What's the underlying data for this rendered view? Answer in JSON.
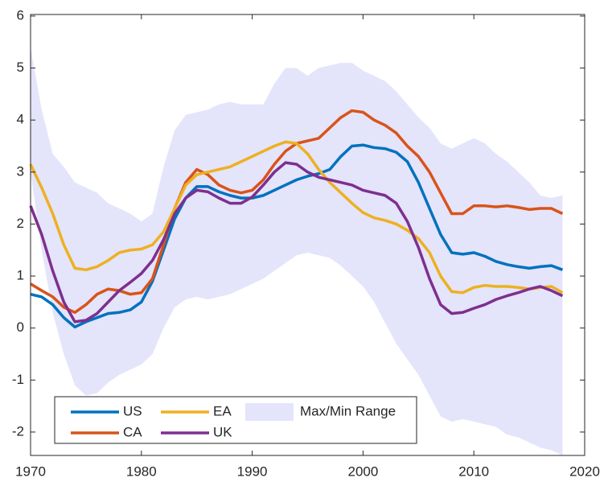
{
  "chart_data": {
    "type": "line",
    "x": [
      1970,
      1971,
      1972,
      1973,
      1974,
      1975,
      1976,
      1977,
      1978,
      1979,
      1980,
      1981,
      1982,
      1983,
      1984,
      1985,
      1986,
      1987,
      1988,
      1989,
      1990,
      1991,
      1992,
      1993,
      1994,
      1995,
      1996,
      1997,
      1998,
      1999,
      2000,
      2001,
      2002,
      2003,
      2004,
      2005,
      2006,
      2007,
      2008,
      2009,
      2010,
      2011,
      2012,
      2013,
      2014,
      2015,
      2016,
      2017,
      2018
    ],
    "series": [
      {
        "name": "US",
        "color": "#0072BD",
        "values": [
          0.65,
          0.6,
          0.45,
          0.2,
          0.02,
          0.12,
          0.2,
          0.28,
          0.3,
          0.35,
          0.5,
          0.9,
          1.5,
          2.1,
          2.5,
          2.72,
          2.72,
          2.62,
          2.55,
          2.5,
          2.5,
          2.55,
          2.65,
          2.75,
          2.85,
          2.92,
          2.97,
          3.05,
          3.3,
          3.5,
          3.52,
          3.47,
          3.45,
          3.38,
          3.2,
          2.8,
          2.3,
          1.8,
          1.45,
          1.42,
          1.45,
          1.38,
          1.28,
          1.22,
          1.18,
          1.15,
          1.18,
          1.2,
          1.12
        ]
      },
      {
        "name": "CA",
        "color": "#D95319",
        "values": [
          0.85,
          0.72,
          0.6,
          0.4,
          0.3,
          0.45,
          0.65,
          0.75,
          0.72,
          0.65,
          0.68,
          0.95,
          1.6,
          2.3,
          2.8,
          3.05,
          2.95,
          2.75,
          2.65,
          2.6,
          2.65,
          2.85,
          3.15,
          3.4,
          3.55,
          3.6,
          3.65,
          3.85,
          4.05,
          4.18,
          4.15,
          4.0,
          3.9,
          3.75,
          3.5,
          3.3,
          3.0,
          2.6,
          2.2,
          2.2,
          2.35,
          2.35,
          2.33,
          2.35,
          2.32,
          2.28,
          2.3,
          2.3,
          2.2
        ]
      },
      {
        "name": "EA",
        "color": "#EDB120",
        "values": [
          3.15,
          2.7,
          2.2,
          1.6,
          1.15,
          1.12,
          1.18,
          1.3,
          1.45,
          1.5,
          1.52,
          1.6,
          1.85,
          2.3,
          2.75,
          2.95,
          3.0,
          3.05,
          3.1,
          3.2,
          3.3,
          3.4,
          3.5,
          3.58,
          3.55,
          3.35,
          3.05,
          2.8,
          2.6,
          2.4,
          2.22,
          2.12,
          2.07,
          2.0,
          1.88,
          1.72,
          1.45,
          1.0,
          0.7,
          0.68,
          0.78,
          0.82,
          0.8,
          0.8,
          0.78,
          0.75,
          0.78,
          0.8,
          0.68
        ]
      },
      {
        "name": "UK",
        "color": "#7E2F8E",
        "values": [
          2.35,
          1.8,
          1.1,
          0.5,
          0.12,
          0.15,
          0.28,
          0.5,
          0.72,
          0.88,
          1.05,
          1.3,
          1.7,
          2.2,
          2.5,
          2.65,
          2.62,
          2.5,
          2.4,
          2.4,
          2.52,
          2.75,
          3.0,
          3.18,
          3.15,
          3.0,
          2.9,
          2.85,
          2.8,
          2.75,
          2.65,
          2.6,
          2.55,
          2.4,
          2.05,
          1.55,
          0.95,
          0.45,
          0.28,
          0.3,
          0.38,
          0.45,
          0.55,
          0.62,
          0.68,
          0.75,
          0.8,
          0.72,
          0.62
        ]
      }
    ],
    "band": {
      "name": "Max/Min Range",
      "color": "#E4E4FB",
      "upper": [
        5.4,
        4.2,
        3.35,
        3.1,
        2.8,
        2.7,
        2.6,
        2.4,
        2.3,
        2.2,
        2.05,
        2.2,
        3.1,
        3.8,
        4.1,
        4.15,
        4.2,
        4.3,
        4.35,
        4.3,
        4.3,
        4.3,
        4.7,
        5.0,
        5.0,
        4.85,
        5.0,
        5.05,
        5.1,
        5.1,
        4.95,
        4.85,
        4.75,
        4.55,
        4.3,
        4.05,
        3.85,
        3.55,
        3.45,
        3.55,
        3.65,
        3.55,
        3.35,
        3.2,
        3.0,
        2.8,
        2.55,
        2.5,
        2.55
      ],
      "lower": [
        3.0,
        1.5,
        0.3,
        -0.5,
        -1.1,
        -1.3,
        -1.25,
        -1.05,
        -0.9,
        -0.8,
        -0.7,
        -0.5,
        0.0,
        0.4,
        0.55,
        0.6,
        0.55,
        0.6,
        0.65,
        0.75,
        0.85,
        0.95,
        1.1,
        1.25,
        1.4,
        1.45,
        1.4,
        1.35,
        1.2,
        1.0,
        0.8,
        0.5,
        0.1,
        -0.3,
        -0.6,
        -0.9,
        -1.3,
        -1.7,
        -1.8,
        -1.75,
        -1.8,
        -1.85,
        -1.9,
        -2.05,
        -2.1,
        -2.2,
        -2.3,
        -2.35,
        -2.45
      ]
    },
    "xlim": [
      1970,
      2020
    ],
    "xticks": [
      1970,
      1980,
      1990,
      2000,
      2010,
      2020
    ],
    "ylim": [
      -2.45,
      6.03
    ],
    "yticks": [
      -2,
      -1,
      0,
      1,
      2,
      3,
      4,
      5,
      6
    ],
    "grid": false,
    "legend": "lower left"
  }
}
